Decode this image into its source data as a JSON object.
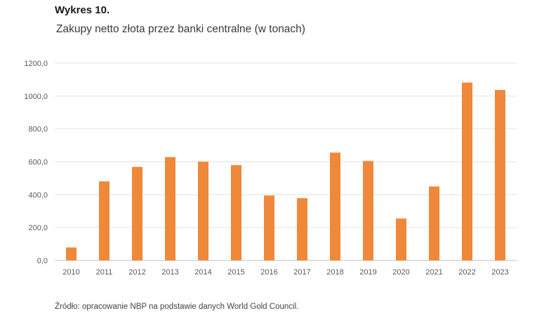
{
  "figure_label": "Wykres 10.",
  "source_note": "Źródło: opracowanie NBP na podstawie danych World Gold Council.",
  "colors": {
    "bar": "#f0883a",
    "grid": "#e3e3e3",
    "axis": "#bfbfbf",
    "tick_text": "#595959"
  },
  "chart_data": {
    "type": "bar",
    "title": "Zakupy netto złota przez banki centralne (w tonach)",
    "xlabel": "",
    "ylabel": "",
    "categories": [
      "2010",
      "2011",
      "2012",
      "2013",
      "2014",
      "2015",
      "2016",
      "2017",
      "2018",
      "2019",
      "2020",
      "2021",
      "2022",
      "2023"
    ],
    "values": [
      79,
      481,
      569,
      629,
      601,
      580,
      395,
      379,
      656,
      605,
      255,
      450,
      1082,
      1037
    ],
    "ylim": [
      0,
      1200
    ],
    "yticks": [
      0,
      200,
      400,
      600,
      800,
      1000,
      1200
    ],
    "ytick_labels": [
      "0,0",
      "200,0",
      "400,0",
      "600,0",
      "800,0",
      "1000,0",
      "1200,0"
    ],
    "grid": true,
    "legend": "none"
  }
}
